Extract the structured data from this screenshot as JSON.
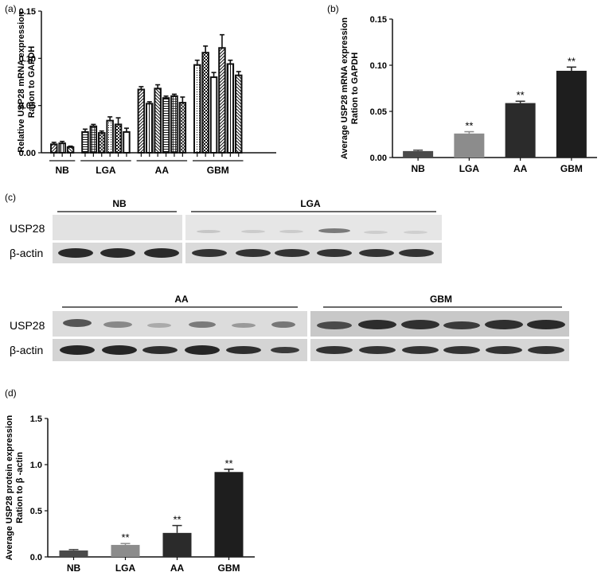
{
  "panels": {
    "a": "(a)",
    "b": "(b)",
    "c": "(c)",
    "d": "(d)"
  },
  "chart_data": [
    {
      "id": "a",
      "type": "bar",
      "title": "",
      "ylabel": "Relative USP28 mRNA expression Ration to GAPDH",
      "ylabel_lines": [
        "Relative USP28 mRNA expression",
        "Ration to GAPDH"
      ],
      "ylim": [
        0,
        0.15
      ],
      "yticks": [
        "0.00",
        "0.05",
        "0.10",
        "0.15"
      ],
      "groups": [
        {
          "name": "NB",
          "values": [
            0.009,
            0.01,
            0.006
          ],
          "errors": [
            0.002,
            0.002,
            0.001
          ]
        },
        {
          "name": "LGA",
          "values": [
            0.022,
            0.028,
            0.021,
            0.034,
            0.03,
            0.022
          ],
          "errors": [
            0.003,
            0.002,
            0.002,
            0.004,
            0.007,
            0.004
          ]
        },
        {
          "name": "AA",
          "values": [
            0.067,
            0.052,
            0.068,
            0.058,
            0.06,
            0.053
          ],
          "errors": [
            0.003,
            0.002,
            0.004,
            0.002,
            0.002,
            0.006
          ]
        },
        {
          "name": "GBM",
          "values": [
            0.093,
            0.106,
            0.08,
            0.111,
            0.094,
            0.082
          ],
          "errors": [
            0.005,
            0.007,
            0.005,
            0.014,
            0.004,
            0.004
          ]
        }
      ]
    },
    {
      "id": "b",
      "type": "bar",
      "title": "",
      "ylabel": "Average USP28 mRNA expression Ration to GAPDH",
      "ylabel_lines": [
        "Average USP28 mRNA expression",
        "Ration to GAPDH"
      ],
      "ylim": [
        0,
        0.15
      ],
      "yticks": [
        "0.00",
        "0.05",
        "0.10",
        "0.15"
      ],
      "categories": [
        "NB",
        "LGA",
        "AA",
        "GBM"
      ],
      "values": [
        0.007,
        0.026,
        0.059,
        0.094
      ],
      "errors": [
        0.001,
        0.002,
        0.002,
        0.004
      ],
      "significance": [
        "",
        "**",
        "**",
        "**"
      ],
      "colors": [
        "#4a4a4a",
        "#8c8c8c",
        "#2b2b2b",
        "#1e1e1e"
      ]
    },
    {
      "id": "d",
      "type": "bar",
      "title": "",
      "ylabel": "Average USP28 protein expression Ration to β -actin",
      "ylabel_lines": [
        "Average USP28 protein expression",
        "Ration to β -actin"
      ],
      "ylim": [
        0,
        1.5
      ],
      "yticks": [
        "0.0",
        "0.5",
        "1.0",
        "1.5"
      ],
      "categories": [
        "NB",
        "LGA",
        "AA",
        "GBM"
      ],
      "values": [
        0.07,
        0.13,
        0.26,
        0.92
      ],
      "errors": [
        0.01,
        0.015,
        0.08,
        0.03
      ],
      "significance": [
        "",
        "**",
        "**",
        "**"
      ],
      "colors": [
        "#4a4a4a",
        "#8c8c8c",
        "#2b2b2b",
        "#1e1e1e"
      ]
    }
  ],
  "blot": {
    "row1_groups": [
      "NB",
      "LGA"
    ],
    "row2_groups": [
      "AA",
      "GBM"
    ],
    "usp28_label": "USP28",
    "actin_label": "β-actin"
  }
}
